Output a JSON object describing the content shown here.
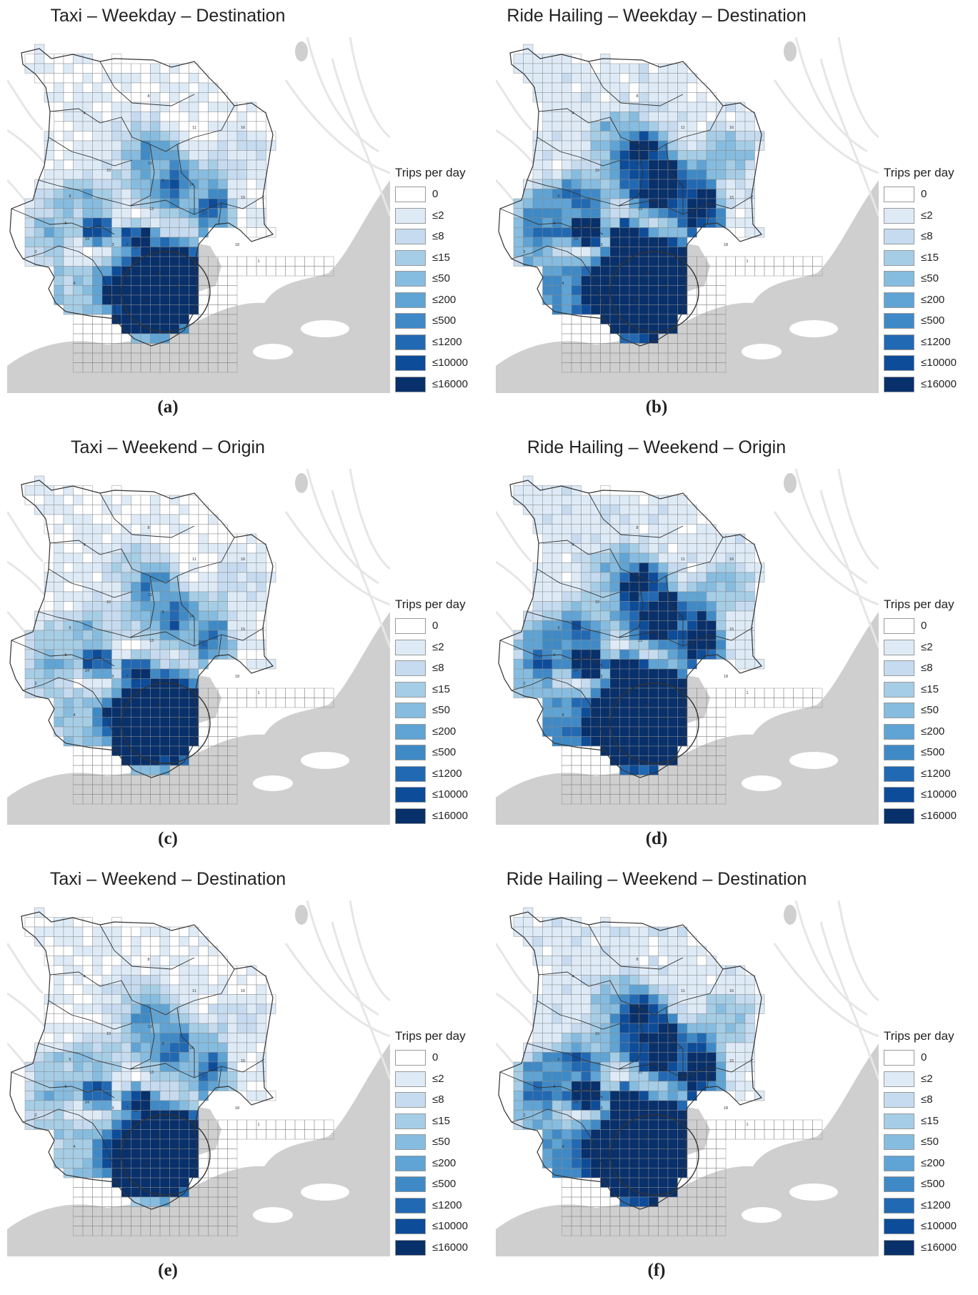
{
  "legend": {
    "title": "Trips per day",
    "items": [
      {
        "label": "0",
        "color": "#ffffff"
      },
      {
        "label": "≤2",
        "color": "#deebf7"
      },
      {
        "label": "≤8",
        "color": "#c6dbef"
      },
      {
        "label": "≤15",
        "color": "#a6cde6"
      },
      {
        "label": "≤50",
        "color": "#86bcdf"
      },
      {
        "label": "≤200",
        "color": "#5fa4d4"
      },
      {
        "label": "≤500",
        "color": "#3f8ac6"
      },
      {
        "label": "≤1200",
        "color": "#2269b3"
      },
      {
        "label": "≤10000",
        "color": "#0d4c99"
      },
      {
        "label": "≤16000",
        "color": "#08306b"
      }
    ]
  },
  "panels": [
    {
      "title": "Taxi – Weekday – Destination",
      "label": "(a)",
      "service": "taxi"
    },
    {
      "title": "Ride Hailing – Weekday – Destination",
      "label": "(b)",
      "service": "ride-hailing"
    },
    {
      "title": "Taxi – Weekend – Origin",
      "label": "(c)",
      "service": "taxi"
    },
    {
      "title": "Ride Hailing – Weekend – Origin",
      "label": "(d)",
      "service": "ride-hailing"
    },
    {
      "title": "Taxi – Weekend – Destination",
      "label": "(e)",
      "service": "taxi"
    },
    {
      "title": "Ride Hailing – Weekend – Destination",
      "label": "(f)",
      "service": "ride-hailing"
    }
  ],
  "colors": {
    "water": "#cfcfcf",
    "road": "#e6e6e6",
    "grid_line": "#8a8a8a",
    "district_boundary": "#333333"
  }
}
